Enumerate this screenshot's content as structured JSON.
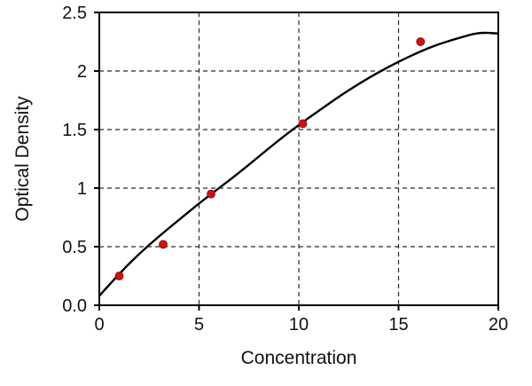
{
  "figure": {
    "background": "#ffffff"
  },
  "chart_data": {
    "type": "scatter",
    "title": "",
    "xlabel": "Concentration",
    "ylabel": "Optical Density",
    "xlim": [
      0,
      20
    ],
    "ylim": [
      0,
      2.5
    ],
    "xticks": [
      0,
      5,
      10,
      15,
      20
    ],
    "xtick_labels": [
      "0",
      "5",
      "10",
      "15",
      "20"
    ],
    "yticks": [
      0,
      0.5,
      1,
      1.5,
      2,
      2.5
    ],
    "ytick_labels": [
      "0.0",
      "0.5",
      "1",
      "1.5",
      "2",
      "2.5"
    ],
    "grid": {
      "style": "dashed",
      "color": "#2a2a2a",
      "dash": "5 4"
    },
    "frame_color": "#000000",
    "legend": "none",
    "series": [
      {
        "name": "measured-points",
        "type": "scatter",
        "color": "#cc1111",
        "x": [
          1.0,
          3.2,
          5.6,
          10.2,
          16.1
        ],
        "y": [
          0.25,
          0.52,
          0.95,
          1.55,
          2.25
        ]
      },
      {
        "name": "fit-curve",
        "type": "line",
        "color": "#000000",
        "x": [
          0,
          1,
          2,
          3,
          4,
          5,
          6,
          7,
          8,
          9,
          10,
          11,
          12,
          13,
          14,
          15,
          16,
          17,
          18,
          19,
          20
        ],
        "y": [
          0.08,
          0.27,
          0.44,
          0.59,
          0.73,
          0.87,
          1.0,
          1.13,
          1.27,
          1.41,
          1.54,
          1.66,
          1.78,
          1.89,
          1.99,
          2.08,
          2.16,
          2.23,
          2.28,
          2.33,
          2.32
        ]
      }
    ]
  }
}
